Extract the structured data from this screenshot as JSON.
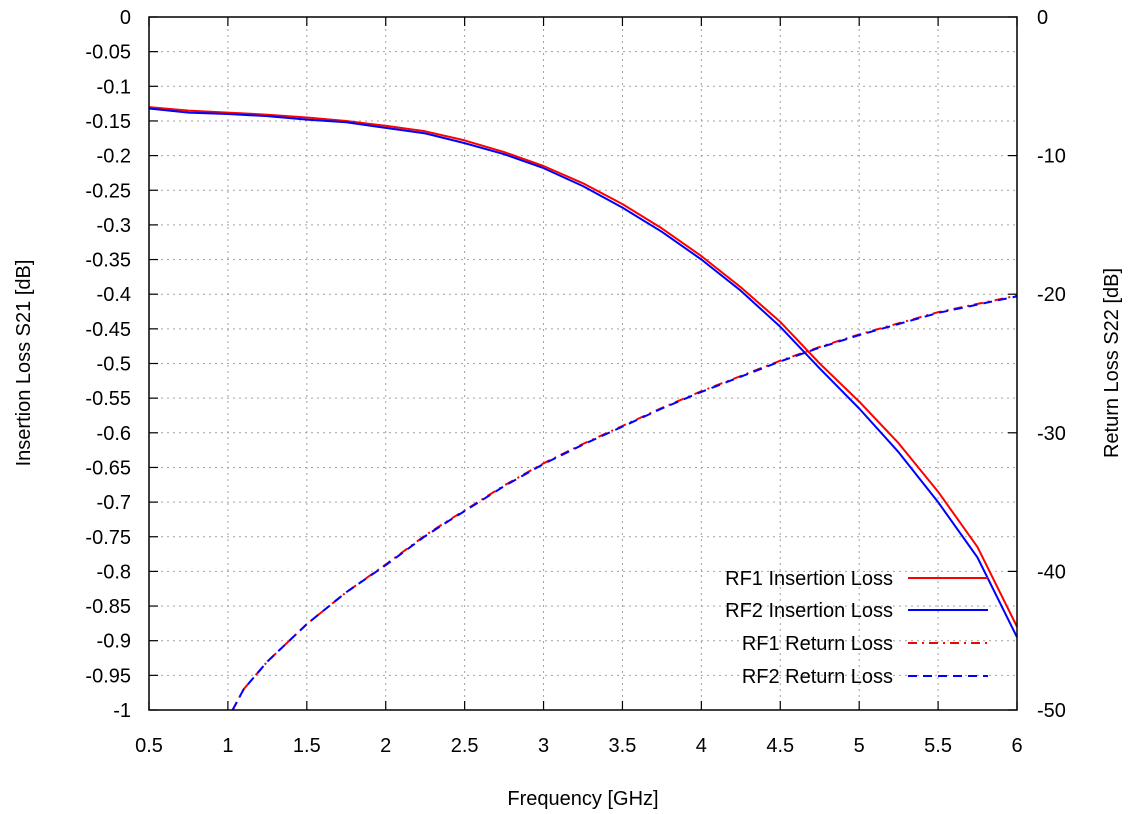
{
  "chart_data": {
    "type": "line",
    "title": "",
    "xlabel": "Frequency [GHz]",
    "ylabel": "Insertion Loss S21 [dB]",
    "y2label": "Return Loss S22 [dB]",
    "xlim": [
      0.5,
      6
    ],
    "ylim": [
      -1,
      0
    ],
    "y2lim": [
      -50,
      0
    ],
    "x_ticks": [
      "0.5",
      "1",
      "1.5",
      "2",
      "2.5",
      "3",
      "3.5",
      "4",
      "4.5",
      "5",
      "5.5",
      "6"
    ],
    "y_ticks": [
      "0",
      "-0.05",
      "-0.1",
      "-0.15",
      "-0.2",
      "-0.25",
      "-0.3",
      "-0.35",
      "-0.4",
      "-0.45",
      "-0.5",
      "-0.55",
      "-0.6",
      "-0.65",
      "-0.7",
      "-0.75",
      "-0.8",
      "-0.85",
      "-0.9",
      "-0.95",
      "-1"
    ],
    "y2_ticks": [
      "0",
      "-10",
      "-20",
      "-30",
      "-40",
      "-50"
    ],
    "grid": true,
    "legend_position": "bottom-right",
    "series": [
      {
        "name": "RF1 Insertion Loss",
        "axis": "y",
        "color": "#ff0000",
        "dash": "solid",
        "x": [
          0.5,
          0.75,
          1.0,
          1.25,
          1.5,
          1.75,
          2.0,
          2.25,
          2.5,
          2.75,
          3.0,
          3.25,
          3.5,
          3.75,
          4.0,
          4.25,
          4.5,
          4.75,
          5.0,
          5.25,
          5.5,
          5.75,
          6.0
        ],
        "y": [
          -0.13,
          -0.135,
          -0.138,
          -0.141,
          -0.145,
          -0.15,
          -0.157,
          -0.165,
          -0.178,
          -0.195,
          -0.215,
          -0.24,
          -0.27,
          -0.305,
          -0.345,
          -0.39,
          -0.44,
          -0.5,
          -0.555,
          -0.615,
          -0.685,
          -0.765,
          -0.88
        ]
      },
      {
        "name": "RF2 Insertion Loss",
        "axis": "y",
        "color": "#0000ff",
        "dash": "solid",
        "x": [
          0.5,
          0.75,
          1.0,
          1.25,
          1.5,
          1.75,
          2.0,
          2.25,
          2.5,
          2.75,
          3.0,
          3.25,
          3.5,
          3.75,
          4.0,
          4.25,
          4.5,
          4.75,
          5.0,
          5.25,
          5.5,
          5.75,
          6.0
        ],
        "y": [
          -0.132,
          -0.138,
          -0.14,
          -0.143,
          -0.148,
          -0.152,
          -0.16,
          -0.168,
          -0.182,
          -0.198,
          -0.218,
          -0.244,
          -0.275,
          -0.31,
          -0.35,
          -0.395,
          -0.447,
          -0.507,
          -0.565,
          -0.628,
          -0.7,
          -0.78,
          -0.895
        ]
      },
      {
        "name": "RF1 Return Loss",
        "axis": "y2",
        "color": "#ff0000",
        "dash": "dashdot",
        "x": [
          1.03,
          1.1,
          1.25,
          1.5,
          1.75,
          2.0,
          2.25,
          2.4,
          2.5,
          2.75,
          3.0,
          3.25,
          3.5,
          3.75,
          4.0,
          4.25,
          4.5,
          4.75,
          5.0,
          5.25,
          5.5,
          5.75,
          6.0
        ],
        "y": [
          -50,
          -48.5,
          -46.5,
          -43.8,
          -41.5,
          -39.5,
          -37.4,
          -36.3,
          -35.6,
          -33.8,
          -32.2,
          -30.8,
          -29.5,
          -28.2,
          -27.0,
          -25.9,
          -24.8,
          -23.8,
          -22.9,
          -22.1,
          -21.3,
          -20.7,
          -20.1
        ]
      },
      {
        "name": "RF2 Return Loss",
        "axis": "y2",
        "color": "#0000ff",
        "dash": "dash",
        "x": [
          1.03,
          1.1,
          1.25,
          1.5,
          1.75,
          2.0,
          2.25,
          2.4,
          2.5,
          2.75,
          3.0,
          3.25,
          3.5,
          3.75,
          4.0,
          4.25,
          4.5,
          4.75,
          5.0,
          5.25,
          5.5,
          5.75,
          6.0
        ],
        "y": [
          -50,
          -48.5,
          -46.5,
          -43.8,
          -41.5,
          -39.55,
          -37.45,
          -36.35,
          -35.65,
          -33.85,
          -32.25,
          -30.85,
          -29.55,
          -28.25,
          -27.05,
          -25.95,
          -24.85,
          -23.85,
          -22.95,
          -22.15,
          -21.35,
          -20.75,
          -20.15
        ]
      }
    ]
  }
}
